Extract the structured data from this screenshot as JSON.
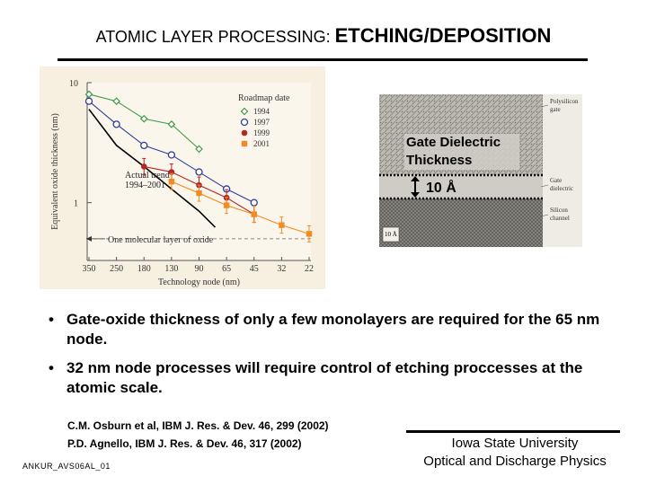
{
  "slide": {
    "title_part1": "ATOMIC LAYER PROCESSING: ",
    "title_part2": "ETCHING/DEPOSITION",
    "bullets": [
      "Gate-oxide thickness of only a few monolayers are required for the 65 nm node.",
      "32 nm node processes will require control of etching proccesses at the atomic scale."
    ],
    "references": [
      "C.M. Osburn et al, IBM J. Res. & Dev. 46, 299 (2002)",
      "P.D. Agnello, IBM J. Res. & Dev. 46, 317 (2002)"
    ],
    "slide_id": "ANKUR_AVS06AL_01",
    "affiliation_line1": "Iowa State University",
    "affiliation_line2": "Optical and Discharge Physics",
    "bullet_glyph": "•"
  },
  "chart_data": {
    "type": "line",
    "xlabel": "Technology node (nm)",
    "ylabel": "Equivalent oxide thickness (nm)",
    "x_ticks": [
      "350",
      "250",
      "180",
      "130",
      "90",
      "65",
      "45",
      "32",
      "22"
    ],
    "y_ticks": [
      "10",
      "1"
    ],
    "y_scale": "log",
    "ylim": [
      0.33,
      10
    ],
    "legend_title": "Roadmap date",
    "legend_position": "top-right",
    "series": [
      {
        "name": "1994",
        "color": "#3f9a4a",
        "marker": "diamond-open",
        "x": [
          "350",
          "250",
          "180",
          "130",
          "90"
        ],
        "y": [
          8.0,
          7.0,
          5.0,
          4.5,
          2.8
        ]
      },
      {
        "name": "1997",
        "color": "#2f3c97",
        "marker": "circle-open",
        "x": [
          "350",
          "250",
          "180",
          "130",
          "90",
          "65",
          "45"
        ],
        "y": [
          7.0,
          4.5,
          3.0,
          2.5,
          1.8,
          1.3,
          1.0
        ]
      },
      {
        "name": "1999",
        "color": "#b62527",
        "marker": "circle-filled",
        "x": [
          "180",
          "130",
          "90",
          "65",
          "45"
        ],
        "y": [
          2.0,
          1.8,
          1.4,
          1.1,
          0.8
        ]
      },
      {
        "name": "2001",
        "color": "#f08c26",
        "marker": "square-filled",
        "x": [
          "130",
          "90",
          "65",
          "45",
          "32",
          "22"
        ],
        "y": [
          1.5,
          1.2,
          0.95,
          0.8,
          0.65,
          0.55
        ]
      }
    ],
    "trend": {
      "label_line1": "Actual trend",
      "label_line2": "1994–2001",
      "x": [
        "350",
        "250",
        "180",
        "130",
        "90"
      ],
      "y": [
        6.0,
        3.0,
        2.0,
        1.3,
        0.85
      ]
    },
    "annotation": "One molecular layer of oxide",
    "molecular_layer_y": 0.5
  },
  "tem_image": {
    "label_dielectric_line1": "Gate Dielectric",
    "label_dielectric_line2": "Thickness",
    "thickness_label": "10 Å",
    "label_polysilicon_line1": "Polysilicon",
    "label_polysilicon_line2": "gate",
    "label_gate_line1": "Gate",
    "label_gate_line2": "dielectric",
    "label_silicon_line1": "Silicon",
    "label_silicon_line2": "channel",
    "scale_bar": "10 Å"
  }
}
